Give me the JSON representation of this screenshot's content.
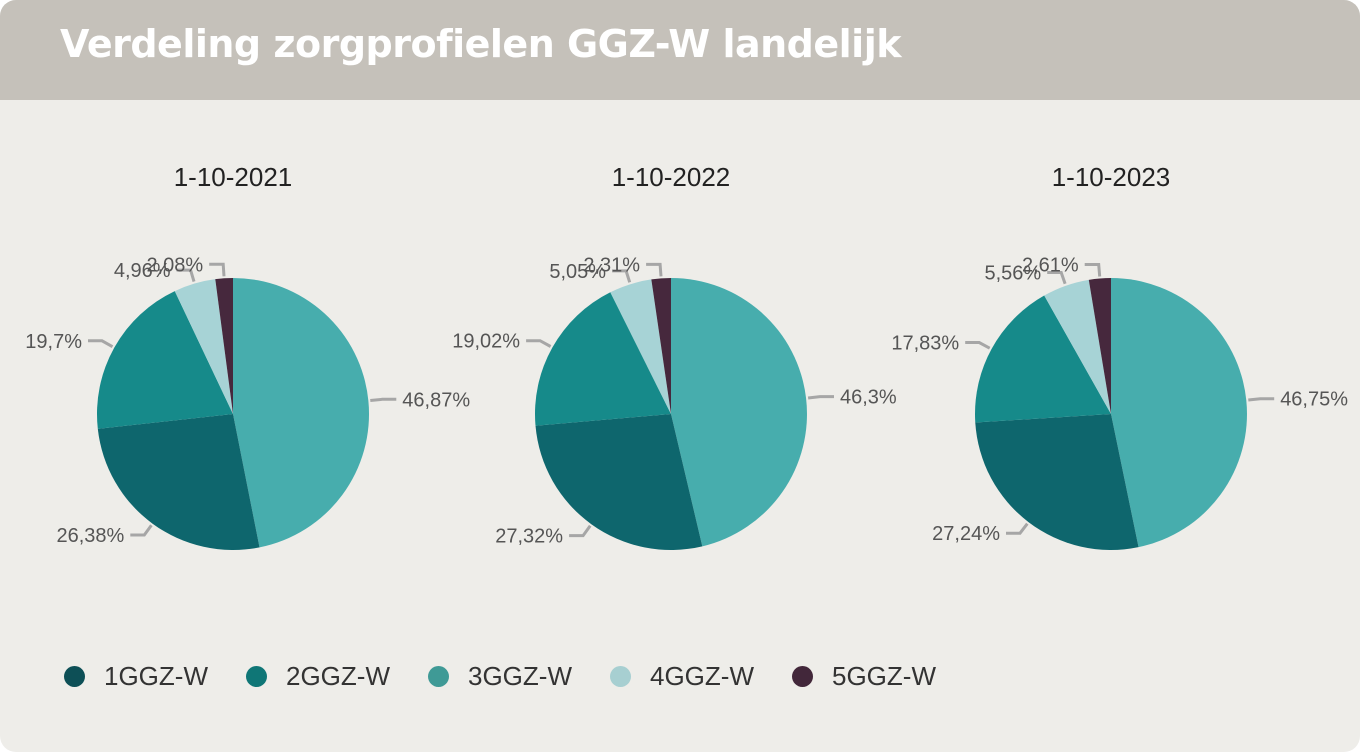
{
  "header": {
    "title": "Verdeling zorgprofielen GGZ-W landelijk"
  },
  "legend": [
    {
      "label": "1GGZ-W",
      "color": "#0d4f56"
    },
    {
      "label": "2GGZ-W",
      "color": "#0f7676"
    },
    {
      "label": "3GGZ-W",
      "color": "#3f9a96"
    },
    {
      "label": "4GGZ-W",
      "color": "#a7cfd1"
    },
    {
      "label": "5GGZ-W",
      "color": "#42273a"
    }
  ],
  "chart_data": [
    {
      "type": "pie",
      "title": "1-10-2021",
      "series": [
        {
          "name": "3GGZ-W",
          "value": 46.87,
          "label": "46,87%",
          "color": "#47adad"
        },
        {
          "name": "1GGZ-W",
          "value": 26.38,
          "label": "26,38%",
          "color": "#0e666d"
        },
        {
          "name": "2GGZ-W",
          "value": 19.7,
          "label": "19,7%",
          "color": "#168a8a"
        },
        {
          "name": "4GGZ-W",
          "value": 4.96,
          "label": "4,96%",
          "color": "#a7d3d6"
        },
        {
          "name": "5GGZ-W",
          "value": 2.08,
          "label": "2,08%",
          "color": "#46283d"
        }
      ]
    },
    {
      "type": "pie",
      "title": "1-10-2022",
      "series": [
        {
          "name": "3GGZ-W",
          "value": 46.3,
          "label": "46,3%",
          "color": "#47adad"
        },
        {
          "name": "1GGZ-W",
          "value": 27.32,
          "label": "27,32%",
          "color": "#0e666d"
        },
        {
          "name": "2GGZ-W",
          "value": 19.02,
          "label": "19,02%",
          "color": "#168a8a"
        },
        {
          "name": "4GGZ-W",
          "value": 5.05,
          "label": "5,05%",
          "color": "#a7d3d6"
        },
        {
          "name": "5GGZ-W",
          "value": 2.31,
          "label": "2,31%",
          "color": "#46283d"
        }
      ]
    },
    {
      "type": "pie",
      "title": "1-10-2023",
      "series": [
        {
          "name": "3GGZ-W",
          "value": 46.75,
          "label": "46,75%",
          "color": "#47adad"
        },
        {
          "name": "1GGZ-W",
          "value": 27.24,
          "label": "27,24%",
          "color": "#0e666d"
        },
        {
          "name": "2GGZ-W",
          "value": 17.83,
          "label": "17,83%",
          "color": "#168a8a"
        },
        {
          "name": "4GGZ-W",
          "value": 5.56,
          "label": "5,56%",
          "color": "#a7d3d6"
        },
        {
          "name": "5GGZ-W",
          "value": 2.61,
          "label": "2,61%",
          "color": "#46283d"
        }
      ]
    }
  ]
}
